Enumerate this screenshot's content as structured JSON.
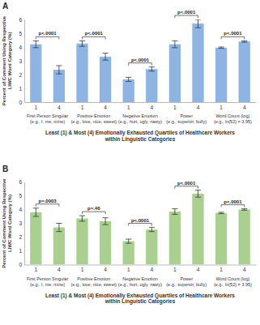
{
  "chart_data": [
    {
      "type": "bar",
      "title": "A",
      "ylabel": "Percent of Comment Using Respective LIWC Word Category (%)",
      "xlabel": "Least (1) & Most (4) Emotionally Exhausted Quartiles of Healthcare Workers within Linguistic Categories",
      "categories": [
        "1",
        "4",
        "1",
        "4",
        "1",
        "4",
        "1",
        "4",
        "1",
        "4"
      ],
      "groups": [
        [
          "First Person Singular",
          "(e.g., I, me, mine)"
        ],
        [
          "Positive Emotion",
          "(e.g., love, nice, sweet)"
        ],
        [
          "Negative Emotion",
          "(e.g., hurt, ugly, nasty)"
        ],
        [
          "Power",
          "(e.g., superior, bully)"
        ],
        [
          "Word Count (log)",
          "(e.g., ln(52) = 3.95)"
        ]
      ],
      "values": [
        4.2,
        2.35,
        4.25,
        3.3,
        1.65,
        2.4,
        4.2,
        5.7,
        3.95,
        4.4
      ],
      "errors": [
        0.25,
        0.3,
        0.2,
        0.25,
        0.15,
        0.15,
        0.25,
        0.3,
        0.05,
        0.05
      ],
      "p_values": [
        "p<.0001",
        "p<.0001",
        "p<.0001",
        "p<.0001",
        "p<.0001"
      ],
      "color": "#8db4e2",
      "ylim": [
        0,
        6
      ],
      "yticks": [
        0,
        1,
        2,
        3,
        4,
        5,
        6
      ],
      "grid": false
    },
    {
      "type": "bar",
      "title": "B",
      "ylabel": "Percent of Comment Using Respective LIWC Word Category (%)",
      "xlabel": "Least (1) & Most (4) Emotionally Exhausted Quartiles of Healthcare Workers within Linguistic Categories",
      "categories": [
        "1",
        "4",
        "1",
        "4",
        "1",
        "4",
        "1",
        "4",
        "1",
        "4"
      ],
      "groups": [
        [
          "First Person Singular",
          "(e.g., I, me, mine)"
        ],
        [
          "Positive Emotion",
          "(e.g., love, nice, sweet)"
        ],
        [
          "Negative Emotion",
          "(e.g., hurt, ugly, nasty)"
        ],
        [
          "Power",
          "(e.g., superior, bully)"
        ],
        [
          "Word Count (log)",
          "(e.g., ln(52) = 3.95)"
        ]
      ],
      "values": [
        3.8,
        2.7,
        3.35,
        3.15,
        1.7,
        2.55,
        3.85,
        5.15,
        3.75,
        4.0
      ],
      "errors": [
        0.3,
        0.3,
        0.2,
        0.25,
        0.15,
        0.15,
        0.2,
        0.25,
        0.05,
        0.05
      ],
      "p_values": [
        "p=.0003",
        "p=.46",
        "p<.0001",
        "p<.0001",
        "p<.0001"
      ],
      "color": "#a9d08e",
      "ylim": [
        0,
        6
      ],
      "yticks": [
        0,
        1,
        2,
        3,
        4,
        5,
        6
      ],
      "grid": false
    }
  ]
}
